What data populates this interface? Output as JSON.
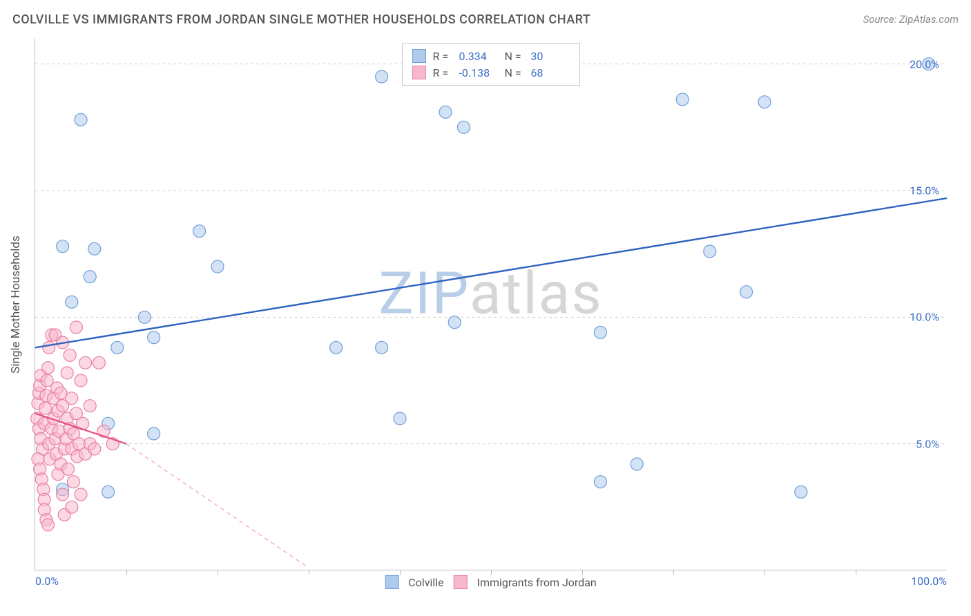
{
  "header": {
    "title": "COLVILLE VS IMMIGRANTS FROM JORDAN SINGLE MOTHER HOUSEHOLDS CORRELATION CHART",
    "source_prefix": "Source: ",
    "source_name": "ZipAtlas.com"
  },
  "watermark": {
    "part1": "ZIP",
    "part2": "atlas",
    "color1": "#b9cfe9",
    "color2": "#d6d6d6"
  },
  "chart": {
    "type": "scatter",
    "background_color": "#ffffff",
    "grid_color": "#d0d0d0",
    "axis_color": "#bbbbbb",
    "tick_label_color": "#3b6fc9",
    "axis_title_color": "#555555",
    "ylabel": "Single Mother Households",
    "xlim": [
      0,
      100
    ],
    "ylim": [
      0,
      21
    ],
    "ytick_values": [
      5,
      10,
      15,
      20
    ],
    "ytick_labels": [
      "5.0%",
      "10.0%",
      "15.0%",
      "20.0%"
    ],
    "xtick_values": [
      0,
      10,
      20,
      30,
      40,
      50,
      60,
      70,
      80,
      90,
      100
    ],
    "xtick_labels_shown": {
      "0": "0.0%",
      "100": "100.0%"
    },
    "marker_radius": 9,
    "marker_stroke_width": 1.2,
    "series": [
      {
        "name": "Colville",
        "fill": "#aecbec",
        "stroke": "#6f9fd8",
        "fill_opacity": 0.55,
        "trend": {
          "x1": 0,
          "y1": 8.8,
          "x2": 100,
          "y2": 14.7,
          "stroke": "#2f63c0",
          "width": 2.4,
          "dash": "none"
        },
        "points": [
          [
            5,
            17.8
          ],
          [
            6.5,
            12.7
          ],
          [
            3,
            12.8
          ],
          [
            6,
            11.6
          ],
          [
            4,
            10.6
          ],
          [
            18,
            13.4
          ],
          [
            12,
            10.0
          ],
          [
            20,
            12.0
          ],
          [
            9,
            8.8
          ],
          [
            13,
            9.2
          ],
          [
            8,
            5.8
          ],
          [
            13,
            5.4
          ],
          [
            8,
            3.1
          ],
          [
            3,
            3.2
          ],
          [
            33,
            8.8
          ],
          [
            38,
            19.5
          ],
          [
            38,
            8.8
          ],
          [
            45,
            18.1
          ],
          [
            47,
            17.5
          ],
          [
            46,
            9.8
          ],
          [
            40,
            6.0
          ],
          [
            62,
            3.5
          ],
          [
            66,
            4.2
          ],
          [
            62,
            9.4
          ],
          [
            71,
            18.6
          ],
          [
            74,
            12.6
          ],
          [
            78,
            11.0
          ],
          [
            80,
            18.5
          ],
          [
            84,
            3.1
          ],
          [
            98,
            20.0
          ]
        ]
      },
      {
        "name": "Immigrants from Jordan",
        "fill": "#f7b8cb",
        "stroke": "#e87fa3",
        "fill_opacity": 0.55,
        "trend_solid": {
          "x1": 0,
          "y1": 6.2,
          "x2": 10,
          "y2": 5.0,
          "stroke": "#e24f7d",
          "width": 2.2
        },
        "trend_dashed": {
          "x1": 10,
          "y1": 5.0,
          "x2": 30,
          "y2": 0.1,
          "stroke": "#f3b0c4",
          "width": 1.5,
          "dash": "6 5"
        },
        "points": [
          [
            0.2,
            6.0
          ],
          [
            0.3,
            6.6
          ],
          [
            0.4,
            7.0
          ],
          [
            0.5,
            7.3
          ],
          [
            0.6,
            7.7
          ],
          [
            0.4,
            5.6
          ],
          [
            0.6,
            5.2
          ],
          [
            0.8,
            4.8
          ],
          [
            0.3,
            4.4
          ],
          [
            0.5,
            4.0
          ],
          [
            0.7,
            3.6
          ],
          [
            0.9,
            3.2
          ],
          [
            1.0,
            2.8
          ],
          [
            1.0,
            5.8
          ],
          [
            1.1,
            6.4
          ],
          [
            1.2,
            6.9
          ],
          [
            1.3,
            7.5
          ],
          [
            1.4,
            8.0
          ],
          [
            1.0,
            2.4
          ],
          [
            1.2,
            2.0
          ],
          [
            1.5,
            8.8
          ],
          [
            1.5,
            5.0
          ],
          [
            1.6,
            4.4
          ],
          [
            1.8,
            5.6
          ],
          [
            1.8,
            9.3
          ],
          [
            2.0,
            6.0
          ],
          [
            2.0,
            6.8
          ],
          [
            2.2,
            9.3
          ],
          [
            2.2,
            5.2
          ],
          [
            2.3,
            4.6
          ],
          [
            2.4,
            7.2
          ],
          [
            2.5,
            6.3
          ],
          [
            2.5,
            3.8
          ],
          [
            2.6,
            5.5
          ],
          [
            2.8,
            4.2
          ],
          [
            2.8,
            7.0
          ],
          [
            3.0,
            6.5
          ],
          [
            3.0,
            9.0
          ],
          [
            3.0,
            3.0
          ],
          [
            3.2,
            4.8
          ],
          [
            3.2,
            2.2
          ],
          [
            3.4,
            5.2
          ],
          [
            3.5,
            7.8
          ],
          [
            3.5,
            6.0
          ],
          [
            3.6,
            4.0
          ],
          [
            3.8,
            5.6
          ],
          [
            3.8,
            8.5
          ],
          [
            4.0,
            4.8
          ],
          [
            4.0,
            6.8
          ],
          [
            4.0,
            2.5
          ],
          [
            4.2,
            3.5
          ],
          [
            4.2,
            5.4
          ],
          [
            4.5,
            9.6
          ],
          [
            4.5,
            6.2
          ],
          [
            4.6,
            4.5
          ],
          [
            4.8,
            5.0
          ],
          [
            5.0,
            7.5
          ],
          [
            5.0,
            3.0
          ],
          [
            5.2,
            5.8
          ],
          [
            5.5,
            4.6
          ],
          [
            5.5,
            8.2
          ],
          [
            6.0,
            5.0
          ],
          [
            6.0,
            6.5
          ],
          [
            6.5,
            4.8
          ],
          [
            7.0,
            8.2
          ],
          [
            7.5,
            5.5
          ],
          [
            8.5,
            5.0
          ],
          [
            1.4,
            1.8
          ]
        ]
      }
    ],
    "legend_top": {
      "rows": [
        {
          "swatch_fill": "#aecbec",
          "swatch_stroke": "#6f9fd8",
          "r_label": "R =",
          "r_value": "0.334",
          "n_label": "N =",
          "n_value": "30"
        },
        {
          "swatch_fill": "#f7b8cb",
          "swatch_stroke": "#e87fa3",
          "r_label": "R =",
          "r_value": "-0.138",
          "n_label": "N =",
          "n_value": "68"
        }
      ]
    },
    "legend_bottom": [
      {
        "swatch_fill": "#aecbec",
        "swatch_stroke": "#6f9fd8",
        "label": "Colville"
      },
      {
        "swatch_fill": "#f7b8cb",
        "swatch_stroke": "#e87fa3",
        "label": "Immigrants from Jordan"
      }
    ]
  }
}
